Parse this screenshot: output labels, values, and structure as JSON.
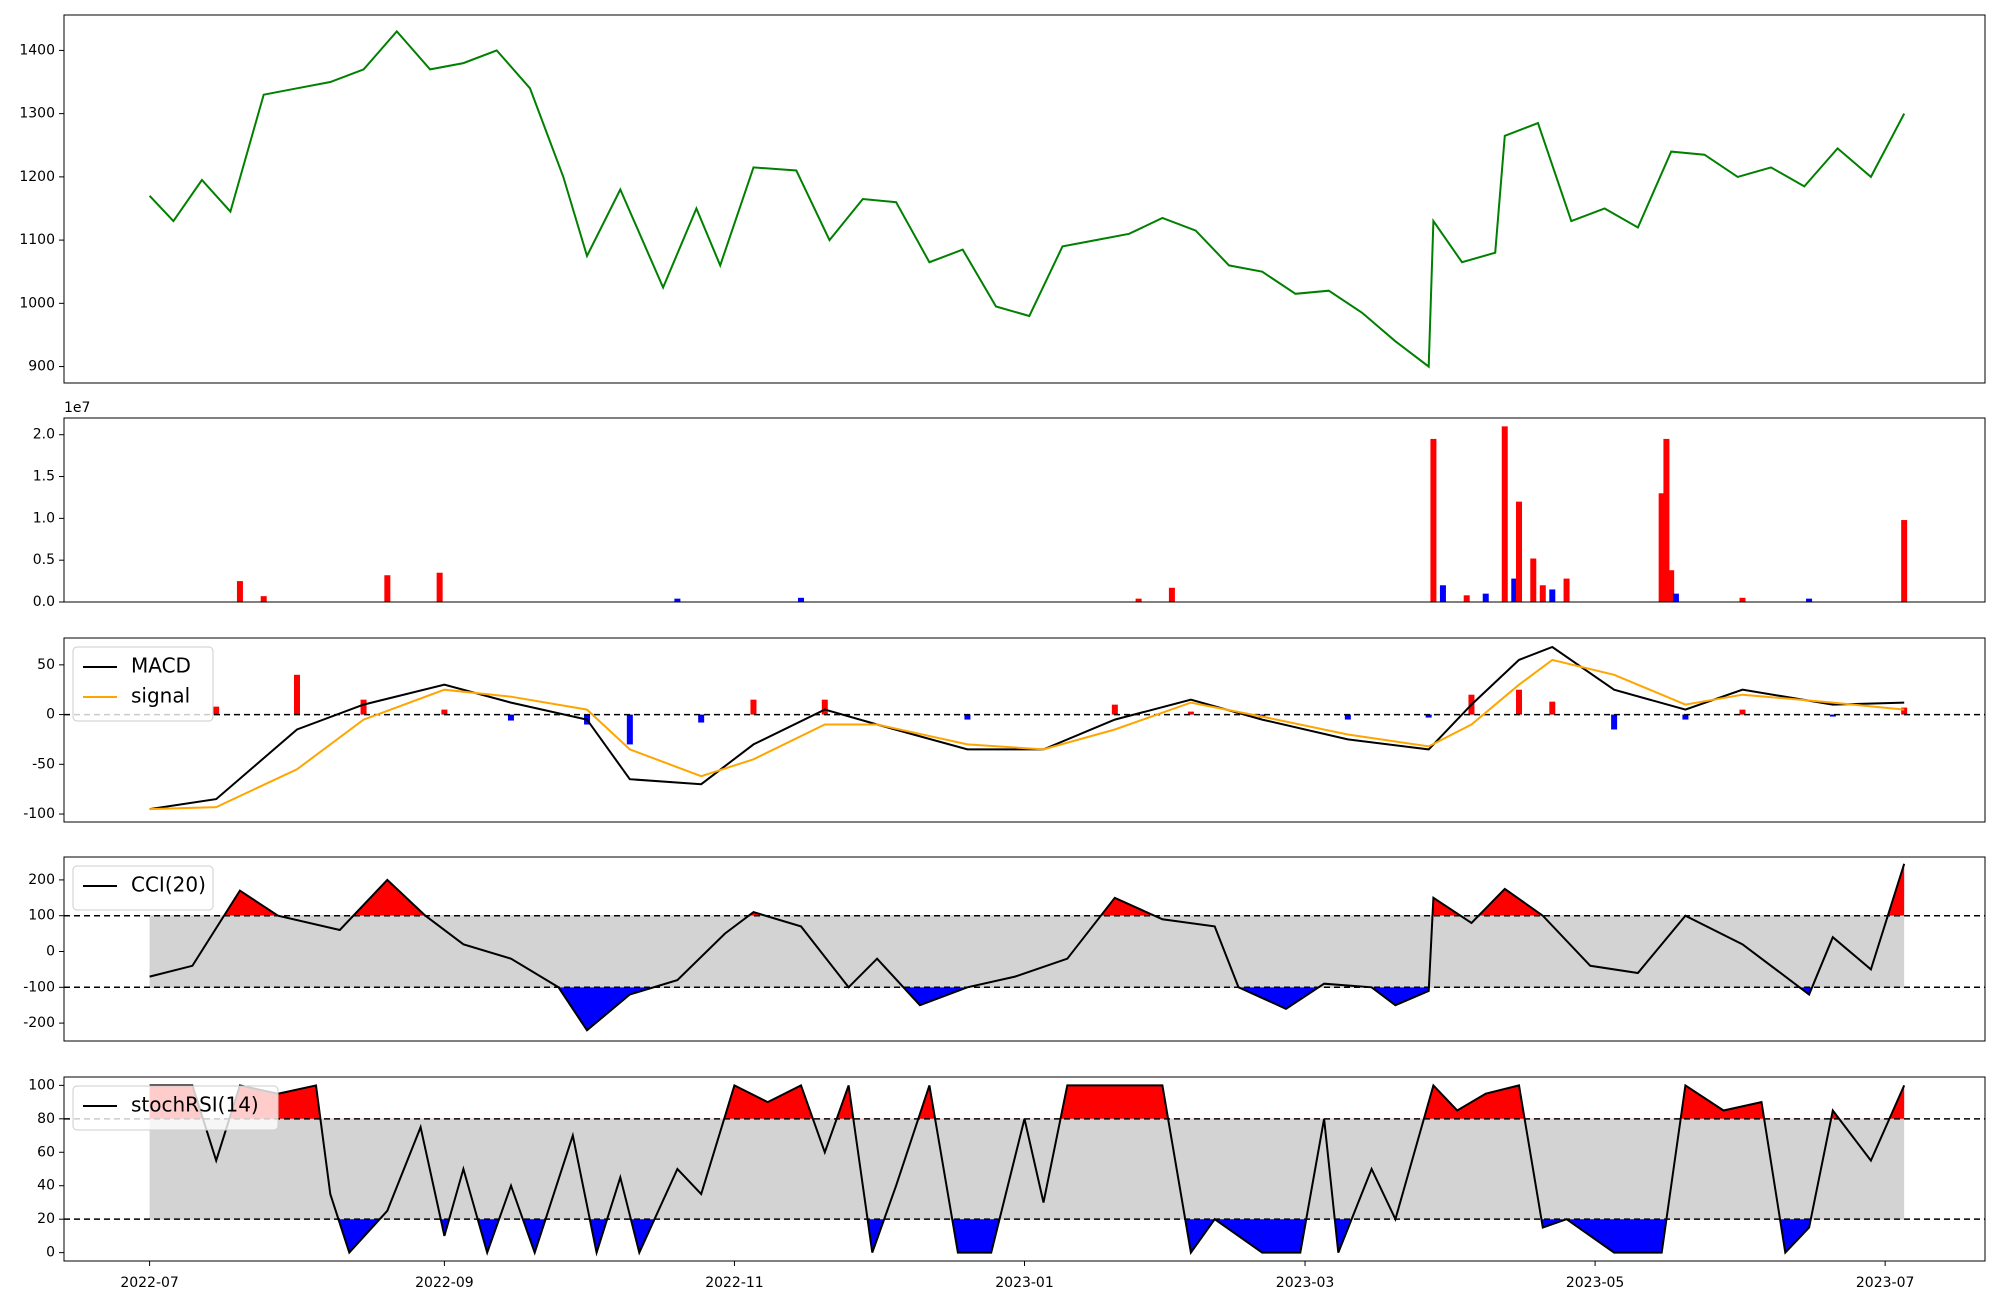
{
  "chart_data": [
    {
      "type": "line",
      "color": "#008000",
      "x": [
        "2022-07-01",
        "2022-07-06",
        "2022-07-12",
        "2022-07-18",
        "2022-07-25",
        "2022-08-01",
        "2022-08-08",
        "2022-08-15",
        "2022-08-22",
        "2022-08-29",
        "2022-09-05",
        "2022-09-12",
        "2022-09-19",
        "2022-09-26",
        "2022-10-01",
        "2022-10-08",
        "2022-10-17",
        "2022-10-24",
        "2022-10-29",
        "2022-11-05",
        "2022-11-14",
        "2022-11-21",
        "2022-11-28",
        "2022-12-05",
        "2022-12-12",
        "2022-12-19",
        "2022-12-26",
        "2023-01-02",
        "2023-01-09",
        "2023-01-16",
        "2023-01-23",
        "2023-01-30",
        "2023-02-06",
        "2023-02-13",
        "2023-02-20",
        "2023-02-27",
        "2023-03-06",
        "2023-03-13",
        "2023-03-20",
        "2023-03-27",
        "2023-03-28",
        "2023-04-03",
        "2023-04-10",
        "2023-04-12",
        "2023-04-19",
        "2023-04-26",
        "2023-05-03",
        "2023-05-10",
        "2023-05-17",
        "2023-05-24",
        "2023-05-31",
        "2023-06-07",
        "2023-06-14",
        "2023-06-21",
        "2023-06-28",
        "2023-07-05"
      ],
      "values": [
        1170,
        1130,
        1195,
        1145,
        1330,
        1340,
        1350,
        1370,
        1430,
        1370,
        1380,
        1400,
        1340,
        1200,
        1075,
        1180,
        1025,
        1150,
        1060,
        1215,
        1210,
        1100,
        1165,
        1160,
        1065,
        1085,
        995,
        980,
        1090,
        1100,
        1110,
        1135,
        1115,
        1060,
        1050,
        1015,
        1020,
        985,
        940,
        900,
        1130,
        1065,
        1080,
        1265,
        1285,
        1130,
        1150,
        1120,
        1240,
        1235,
        1200,
        1215,
        1185,
        1245,
        1200,
        1300
      ],
      "xlim": [
        "2022-06-13",
        "2023-07-22"
      ],
      "ylim": [
        874,
        1456
      ],
      "yticks": [
        900,
        1000,
        1100,
        1200,
        1300,
        1400
      ]
    },
    {
      "type": "bar",
      "offset_label": "1e7",
      "x": [
        "2022-07-20",
        "2022-07-25",
        "2022-08-20",
        "2022-08-31",
        "2022-10-20",
        "2022-11-15",
        "2023-01-25",
        "2023-02-01",
        "2023-03-28",
        "2023-03-30",
        "2023-04-04",
        "2023-04-08",
        "2023-04-12",
        "2023-04-14",
        "2023-04-15",
        "2023-04-18",
        "2023-04-20",
        "2023-04-22",
        "2023-04-25",
        "2023-05-15",
        "2023-05-16",
        "2023-05-17",
        "2023-05-18",
        "2023-06-01",
        "2023-06-15",
        "2023-07-05"
      ],
      "values": [
        0.25,
        0.07,
        0.32,
        0.35,
        0.04,
        0.05,
        0.04,
        0.17,
        1.95,
        0.2,
        0.08,
        0.1,
        2.1,
        0.28,
        1.2,
        0.52,
        0.2,
        0.15,
        0.28,
        1.3,
        1.95,
        0.38,
        0.1,
        0.05,
        0.04,
        0.98
      ],
      "colors": [
        "#ff0000",
        "#ff0000",
        "#ff0000",
        "#ff0000",
        "#0000ff",
        "#0000ff",
        "#ff0000",
        "#ff0000",
        "#ff0000",
        "#0000ff",
        "#ff0000",
        "#0000ff",
        "#ff0000",
        "#0000ff",
        "#ff0000",
        "#ff0000",
        "#ff0000",
        "#0000ff",
        "#ff0000",
        "#ff0000",
        "#ff0000",
        "#ff0000",
        "#0000ff",
        "#ff0000",
        "#0000ff",
        "#ff0000"
      ],
      "xlim": [
        "2022-06-13",
        "2023-07-22"
      ],
      "ylim": [
        0,
        2.2
      ],
      "yticks": [
        {
          "value": 0,
          "label": "0.0"
        },
        {
          "value": 0.5,
          "label": "0.5"
        },
        {
          "value": 1,
          "label": "1.0"
        },
        {
          "value": 1.5,
          "label": "1.5"
        },
        {
          "value": 2,
          "label": "2.0"
        }
      ]
    },
    {
      "type": "macd",
      "hline": 0,
      "legend": "upper left",
      "up_color": "#ff0000",
      "down_color": "#0000ff",
      "x": [
        "2022-07-01",
        "2022-07-15",
        "2022-08-01",
        "2022-08-15",
        "2022-09-01",
        "2022-09-15",
        "2022-10-01",
        "2022-10-10",
        "2022-10-25",
        "2022-11-05",
        "2022-11-20",
        "2022-12-01",
        "2022-12-20",
        "2023-01-05",
        "2023-01-20",
        "2023-02-05",
        "2023-02-20",
        "2023-03-10",
        "2023-03-27",
        "2023-04-05",
        "2023-04-15",
        "2023-04-22",
        "2023-05-05",
        "2023-05-20",
        "2023-06-01",
        "2023-06-20",
        "2023-07-05"
      ],
      "series": [
        {
          "name": "MACD",
          "color": "#000000",
          "values": [
            -95,
            -85,
            -15,
            10,
            30,
            12,
            -5,
            -65,
            -70,
            -30,
            5,
            -10,
            -35,
            -35,
            -5,
            15,
            -5,
            -25,
            -35,
            10,
            55,
            68,
            25,
            5,
            25,
            10,
            12
          ]
        },
        {
          "name": "signal",
          "color": "#ffa500",
          "values": [
            -95,
            -93,
            -55,
            -5,
            25,
            18,
            5,
            -35,
            -62,
            -45,
            -10,
            -10,
            -30,
            -35,
            -15,
            12,
            -2,
            -20,
            -32,
            -10,
            30,
            55,
            40,
            10,
            20,
            12,
            5
          ]
        }
      ],
      "histogram": [
        0,
        8,
        40,
        15,
        5,
        -6,
        -10,
        -30,
        -8,
        15,
        15,
        0,
        -5,
        0,
        10,
        3,
        -3,
        -5,
        -3,
        20,
        25,
        13,
        -15,
        -5,
        5,
        -2,
        7
      ],
      "xlim": [
        "2022-06-13",
        "2023-07-22"
      ],
      "ylim": [
        -108,
        77
      ],
      "yticks": [
        -100,
        -50,
        0,
        50
      ]
    },
    {
      "type": "band",
      "upper": 100,
      "lower": -100,
      "legend": "upper left",
      "band_color": "#d3d3d3",
      "upper_color": "#ff0000",
      "lower_color": "#0000ff",
      "x": [
        "2022-07-01",
        "2022-07-10",
        "2022-07-20",
        "2022-07-28",
        "2022-08-10",
        "2022-08-20",
        "2022-08-28",
        "2022-09-05",
        "2022-09-15",
        "2022-09-25",
        "2022-10-01",
        "2022-10-10",
        "2022-10-20",
        "2022-10-30",
        "2022-11-05",
        "2022-11-15",
        "2022-11-25",
        "2022-12-01",
        "2022-12-10",
        "2022-12-20",
        "2022-12-30",
        "2023-01-10",
        "2023-01-20",
        "2023-01-30",
        "2023-02-10",
        "2023-02-15",
        "2023-02-25",
        "2023-03-05",
        "2023-03-15",
        "2023-03-20",
        "2023-03-27",
        "2023-03-28",
        "2023-04-05",
        "2023-04-12",
        "2023-04-20",
        "2023-04-30",
        "2023-05-10",
        "2023-05-20",
        "2023-06-01",
        "2023-06-15",
        "2023-06-20",
        "2023-06-28",
        "2023-07-05"
      ],
      "series": [
        {
          "name": "CCI(20)",
          "color": "#000000",
          "values": [
            -70,
            -40,
            170,
            100,
            60,
            200,
            100,
            20,
            -20,
            -100,
            -220,
            -120,
            -80,
            50,
            110,
            70,
            -100,
            -20,
            -150,
            -100,
            -70,
            -20,
            150,
            90,
            70,
            -100,
            -160,
            -90,
            -100,
            -150,
            -110,
            150,
            80,
            175,
            100,
            -40,
            -60,
            100,
            20,
            -120,
            40,
            -50,
            245
          ]
        }
      ],
      "xlim": [
        "2022-06-13",
        "2023-07-22"
      ],
      "ylim": [
        -250,
        264
      ],
      "yticks": [
        -200,
        -100,
        0,
        100,
        200
      ]
    },
    {
      "type": "band",
      "upper": 80,
      "lower": 20,
      "legend": "upper left",
      "band_color": "#d3d3d3",
      "upper_color": "#ff0000",
      "lower_color": "#0000ff",
      "x": [
        "2022-07-01",
        "2022-07-10",
        "2022-07-15",
        "2022-07-20",
        "2022-07-28",
        "2022-08-05",
        "2022-08-08",
        "2022-08-12",
        "2022-08-20",
        "2022-08-27",
        "2022-09-01",
        "2022-09-05",
        "2022-09-10",
        "2022-09-15",
        "2022-09-20",
        "2022-09-28",
        "2022-10-03",
        "2022-10-08",
        "2022-10-12",
        "2022-10-20",
        "2022-10-25",
        "2022-11-01",
        "2022-11-08",
        "2022-11-15",
        "2022-11-20",
        "2022-11-25",
        "2022-11-30",
        "2022-12-05",
        "2022-12-12",
        "2022-12-18",
        "2022-12-25",
        "2023-01-01",
        "2023-01-05",
        "2023-01-10",
        "2023-01-20",
        "2023-01-30",
        "2023-02-05",
        "2023-02-10",
        "2023-02-20",
        "2023-02-28",
        "2023-03-05",
        "2023-03-08",
        "2023-03-15",
        "2023-03-20",
        "2023-03-28",
        "2023-04-02",
        "2023-04-08",
        "2023-04-15",
        "2023-04-20",
        "2023-04-25",
        "2023-05-05",
        "2023-05-15",
        "2023-05-20",
        "2023-05-28",
        "2023-06-05",
        "2023-06-10",
        "2023-06-15",
        "2023-06-20",
        "2023-06-28",
        "2023-07-05"
      ],
      "series": [
        {
          "name": "stochRSI(14)",
          "color": "#000000",
          "values": [
            100,
            100,
            55,
            100,
            95,
            100,
            35,
            0,
            25,
            75,
            10,
            50,
            0,
            40,
            0,
            70,
            0,
            45,
            0,
            50,
            35,
            100,
            90,
            100,
            60,
            100,
            0,
            40,
            100,
            0,
            0,
            80,
            30,
            100,
            100,
            100,
            0,
            20,
            0,
            0,
            80,
            0,
            50,
            20,
            100,
            85,
            95,
            100,
            15,
            20,
            0,
            0,
            100,
            85,
            90,
            0,
            15,
            85,
            55,
            100
          ]
        }
      ],
      "xlim": [
        "2022-06-13",
        "2023-07-22"
      ],
      "ylim": [
        -5,
        105
      ],
      "yticks": [
        0,
        20,
        40,
        60,
        80,
        100
      ],
      "xticks": [
        {
          "value": "2022-07-01",
          "label": "2022-07"
        },
        {
          "value": "2022-09-01",
          "label": "2022-09"
        },
        {
          "value": "2022-11-01",
          "label": "2022-11"
        },
        {
          "value": "2023-01-01",
          "label": "2023-01"
        },
        {
          "value": "2023-03-01",
          "label": "2023-03"
        },
        {
          "value": "2023-05-01",
          "label": "2023-05"
        },
        {
          "value": "2023-07-01",
          "label": "2023-07"
        }
      ]
    }
  ]
}
